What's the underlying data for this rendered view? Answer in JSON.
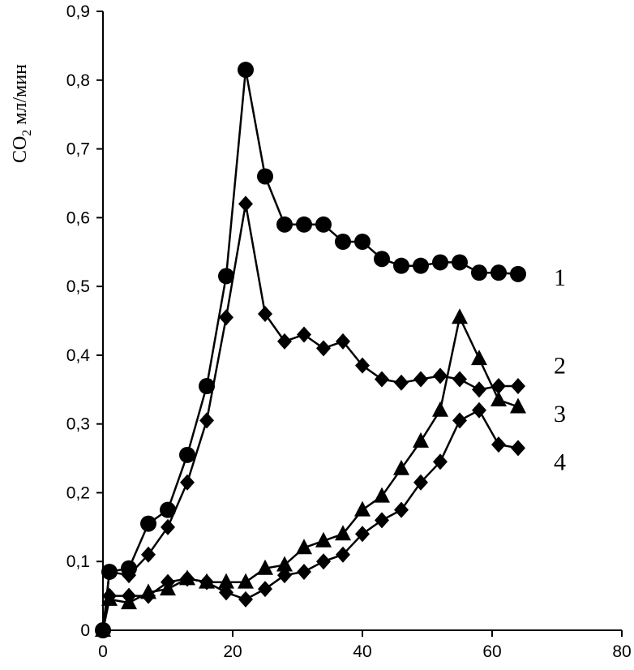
{
  "chart_data": {
    "type": "line",
    "title": "",
    "xlabel": "",
    "ylabel_main": "CO",
    "ylabel_sub": "2",
    "ylabel_unit": " мл/мин",
    "xlim": [
      0,
      80
    ],
    "ylim": [
      0,
      0.9
    ],
    "x_ticks": [
      0,
      20,
      40,
      60,
      80
    ],
    "x_tick_labels": [
      "0",
      "20",
      "40",
      "60",
      "80"
    ],
    "y_ticks": [
      0,
      0.1,
      0.2,
      0.3,
      0.4,
      0.5,
      0.6,
      0.7,
      0.8,
      0.9
    ],
    "y_tick_labels": [
      "0",
      "0,1",
      "0,2",
      "0,3",
      "0,4",
      "0,5",
      "0,6",
      "0,7",
      "0,8",
      "0,9"
    ],
    "grid": false,
    "legend": "none",
    "series": [
      {
        "name": "1",
        "marker": "circle",
        "points": [
          [
            0,
            0
          ],
          [
            1,
            0.085
          ],
          [
            4,
            0.09
          ],
          [
            7,
            0.155
          ],
          [
            10,
            0.175
          ],
          [
            13,
            0.255
          ],
          [
            16,
            0.355
          ],
          [
            19,
            0.515
          ],
          [
            22,
            0.815
          ],
          [
            25,
            0.66
          ],
          [
            28,
            0.59
          ],
          [
            31,
            0.59
          ],
          [
            34,
            0.59
          ],
          [
            37,
            0.565
          ],
          [
            40,
            0.565
          ],
          [
            43,
            0.54
          ],
          [
            46,
            0.53
          ],
          [
            49,
            0.53
          ],
          [
            52,
            0.535
          ],
          [
            55,
            0.535
          ],
          [
            58,
            0.52
          ],
          [
            61,
            0.52
          ],
          [
            64,
            0.518
          ]
        ]
      },
      {
        "name": "2",
        "marker": "diamond",
        "points": [
          [
            0,
            0
          ],
          [
            1,
            0.085
          ],
          [
            4,
            0.08
          ],
          [
            7,
            0.11
          ],
          [
            10,
            0.15
          ],
          [
            13,
            0.215
          ],
          [
            16,
            0.305
          ],
          [
            19,
            0.455
          ],
          [
            22,
            0.62
          ],
          [
            25,
            0.46
          ],
          [
            28,
            0.42
          ],
          [
            31,
            0.43
          ],
          [
            34,
            0.41
          ],
          [
            37,
            0.42
          ],
          [
            40,
            0.385
          ],
          [
            43,
            0.365
          ],
          [
            46,
            0.36
          ],
          [
            49,
            0.365
          ],
          [
            52,
            0.37
          ],
          [
            55,
            0.365
          ],
          [
            58,
            0.35
          ],
          [
            61,
            0.355
          ],
          [
            64,
            0.355
          ]
        ]
      },
      {
        "name": "3",
        "marker": "triangle",
        "points": [
          [
            0,
            0
          ],
          [
            1,
            0.045
          ],
          [
            4,
            0.04
          ],
          [
            7,
            0.055
          ],
          [
            10,
            0.06
          ],
          [
            13,
            0.075
          ],
          [
            16,
            0.07
          ],
          [
            19,
            0.07
          ],
          [
            22,
            0.07
          ],
          [
            25,
            0.09
          ],
          [
            28,
            0.095
          ],
          [
            31,
            0.12
          ],
          [
            34,
            0.13
          ],
          [
            37,
            0.14
          ],
          [
            40,
            0.175
          ],
          [
            43,
            0.195
          ],
          [
            46,
            0.235
          ],
          [
            49,
            0.275
          ],
          [
            52,
            0.32
          ],
          [
            55,
            0.455
          ],
          [
            58,
            0.395
          ],
          [
            61,
            0.335
          ],
          [
            64,
            0.325
          ]
        ]
      },
      {
        "name": "4",
        "marker": "diamond",
        "points": [
          [
            0,
            0
          ],
          [
            1,
            0.05
          ],
          [
            4,
            0.05
          ],
          [
            7,
            0.05
          ],
          [
            10,
            0.07
          ],
          [
            13,
            0.075
          ],
          [
            16,
            0.07
          ],
          [
            19,
            0.055
          ],
          [
            22,
            0.045
          ],
          [
            25,
            0.06
          ],
          [
            28,
            0.08
          ],
          [
            31,
            0.085
          ],
          [
            34,
            0.1
          ],
          [
            37,
            0.11
          ],
          [
            40,
            0.14
          ],
          [
            43,
            0.16
          ],
          [
            46,
            0.175
          ],
          [
            49,
            0.215
          ],
          [
            52,
            0.245
          ],
          [
            55,
            0.305
          ],
          [
            58,
            0.32
          ],
          [
            61,
            0.27
          ],
          [
            64,
            0.265
          ]
        ]
      }
    ],
    "series_labels": [
      {
        "text": "1",
        "y": 0.513
      },
      {
        "text": "2",
        "y": 0.385
      },
      {
        "text": "3",
        "y": 0.315
      },
      {
        "text": "4",
        "y": 0.245
      }
    ]
  }
}
